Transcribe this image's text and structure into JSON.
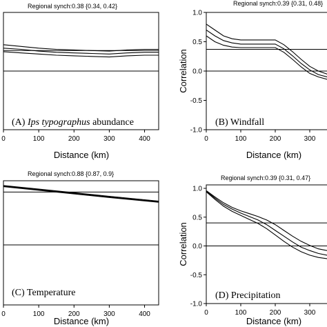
{
  "chart_data": [
    {
      "type": "line",
      "panel": "A",
      "synch_text": "Regional synch:0.38 {0.34, 0.42}",
      "panel_label_pre": "(A) ",
      "panel_label_italic": "Ips typographus",
      "panel_label_post": " abundance",
      "xlabel": "Distance (km)",
      "ylabel": "",
      "xlim": [
        0,
        440
      ],
      "ylim": [
        -1.0,
        1.0
      ],
      "xticks": [
        "0",
        "100",
        "200",
        "300",
        "400"
      ],
      "yticks": [],
      "hlines": [
        0.35,
        0.0
      ],
      "x": [
        0,
        50,
        100,
        150,
        200,
        250,
        300,
        350,
        400,
        440
      ],
      "series": [
        {
          "values": [
            0.45,
            0.42,
            0.39,
            0.37,
            0.36,
            0.35,
            0.34,
            0.36,
            0.37,
            0.37
          ]
        },
        {
          "values": [
            0.39,
            0.37,
            0.34,
            0.32,
            0.31,
            0.3,
            0.29,
            0.31,
            0.32,
            0.32
          ]
        },
        {
          "values": [
            0.33,
            0.31,
            0.29,
            0.27,
            0.26,
            0.25,
            0.24,
            0.26,
            0.27,
            0.27
          ]
        }
      ]
    },
    {
      "type": "line",
      "panel": "B",
      "synch_text": "Regional synch:0.39 {0.31, 0.48}",
      "panel_label_pre": "(B) Windfall",
      "panel_label_italic": "",
      "panel_label_post": "",
      "xlabel": "Distance (km)",
      "ylabel": "Correlation",
      "xlim": [
        0,
        360
      ],
      "ylim": [
        -1.0,
        1.0
      ],
      "xticks": [
        "0",
        "100",
        "200",
        "300"
      ],
      "yticks": [
        "1.0",
        "0.5",
        "0.0",
        "-0.5",
        "-1.0"
      ],
      "hlines": [
        0.37,
        0.0
      ],
      "x": [
        0,
        25,
        50,
        75,
        100,
        125,
        150,
        175,
        200,
        225,
        250,
        275,
        300,
        325,
        350,
        360
      ],
      "series": [
        {
          "values": [
            0.8,
            0.7,
            0.6,
            0.55,
            0.53,
            0.53,
            0.53,
            0.53,
            0.53,
            0.45,
            0.33,
            0.2,
            0.08,
            0.0,
            -0.05,
            -0.06
          ]
        },
        {
          "values": [
            0.7,
            0.6,
            0.52,
            0.48,
            0.46,
            0.46,
            0.46,
            0.46,
            0.46,
            0.38,
            0.26,
            0.13,
            0.02,
            -0.06,
            -0.1,
            -0.11
          ]
        },
        {
          "values": [
            0.6,
            0.5,
            0.44,
            0.41,
            0.4,
            0.4,
            0.4,
            0.4,
            0.4,
            0.32,
            0.2,
            0.07,
            -0.04,
            -0.1,
            -0.14,
            -0.15
          ]
        }
      ]
    },
    {
      "type": "line",
      "panel": "C",
      "synch_text": "Regional synch:0.88 {0.87, 0.9}",
      "panel_label_pre": "(C) Temperature",
      "panel_label_italic": "",
      "panel_label_post": "",
      "xlabel": "Distance (km)",
      "ylabel": "",
      "xlim": [
        0,
        440
      ],
      "ylim": [
        -1.0,
        1.0
      ],
      "xticks": [
        "0",
        "100",
        "200",
        "300",
        "400"
      ],
      "yticks": [],
      "hlines": [
        0.88,
        0.0
      ],
      "x": [
        0,
        100,
        200,
        300,
        440
      ],
      "series": [
        {
          "values": [
            0.99,
            0.93,
            0.87,
            0.81,
            0.73
          ]
        },
        {
          "values": [
            0.98,
            0.92,
            0.86,
            0.8,
            0.72
          ]
        },
        {
          "values": [
            0.97,
            0.91,
            0.85,
            0.79,
            0.71
          ]
        }
      ]
    },
    {
      "type": "line",
      "panel": "D",
      "synch_text": "Regional synch:0.39 {0.31, 0.47}",
      "panel_label_pre": "(D) Precipitation",
      "panel_label_italic": "",
      "panel_label_post": "",
      "xlabel": "Distance (km)",
      "ylabel": "Correlation",
      "xlim": [
        0,
        360
      ],
      "ylim": [
        -1.0,
        1.0
      ],
      "xticks": [
        "0",
        "100",
        "200",
        "300"
      ],
      "yticks": [
        "1.0",
        "0.5",
        "0.0",
        "-0.5",
        "-1.0"
      ],
      "hlines": [
        0.4,
        0.0
      ],
      "x": [
        0,
        25,
        50,
        75,
        100,
        125,
        150,
        175,
        200,
        225,
        250,
        275,
        300,
        325,
        350,
        360
      ],
      "series": [
        {
          "values": [
            0.96,
            0.85,
            0.75,
            0.67,
            0.61,
            0.56,
            0.51,
            0.45,
            0.37,
            0.27,
            0.17,
            0.08,
            0.01,
            -0.05,
            -0.08,
            -0.09
          ]
        },
        {
          "values": [
            0.95,
            0.83,
            0.72,
            0.64,
            0.57,
            0.51,
            0.45,
            0.37,
            0.27,
            0.17,
            0.07,
            -0.02,
            -0.08,
            -0.13,
            -0.16,
            -0.17
          ]
        },
        {
          "values": [
            0.94,
            0.81,
            0.69,
            0.6,
            0.53,
            0.46,
            0.39,
            0.3,
            0.19,
            0.08,
            -0.02,
            -0.1,
            -0.16,
            -0.2,
            -0.22,
            -0.23
          ]
        }
      ]
    }
  ]
}
